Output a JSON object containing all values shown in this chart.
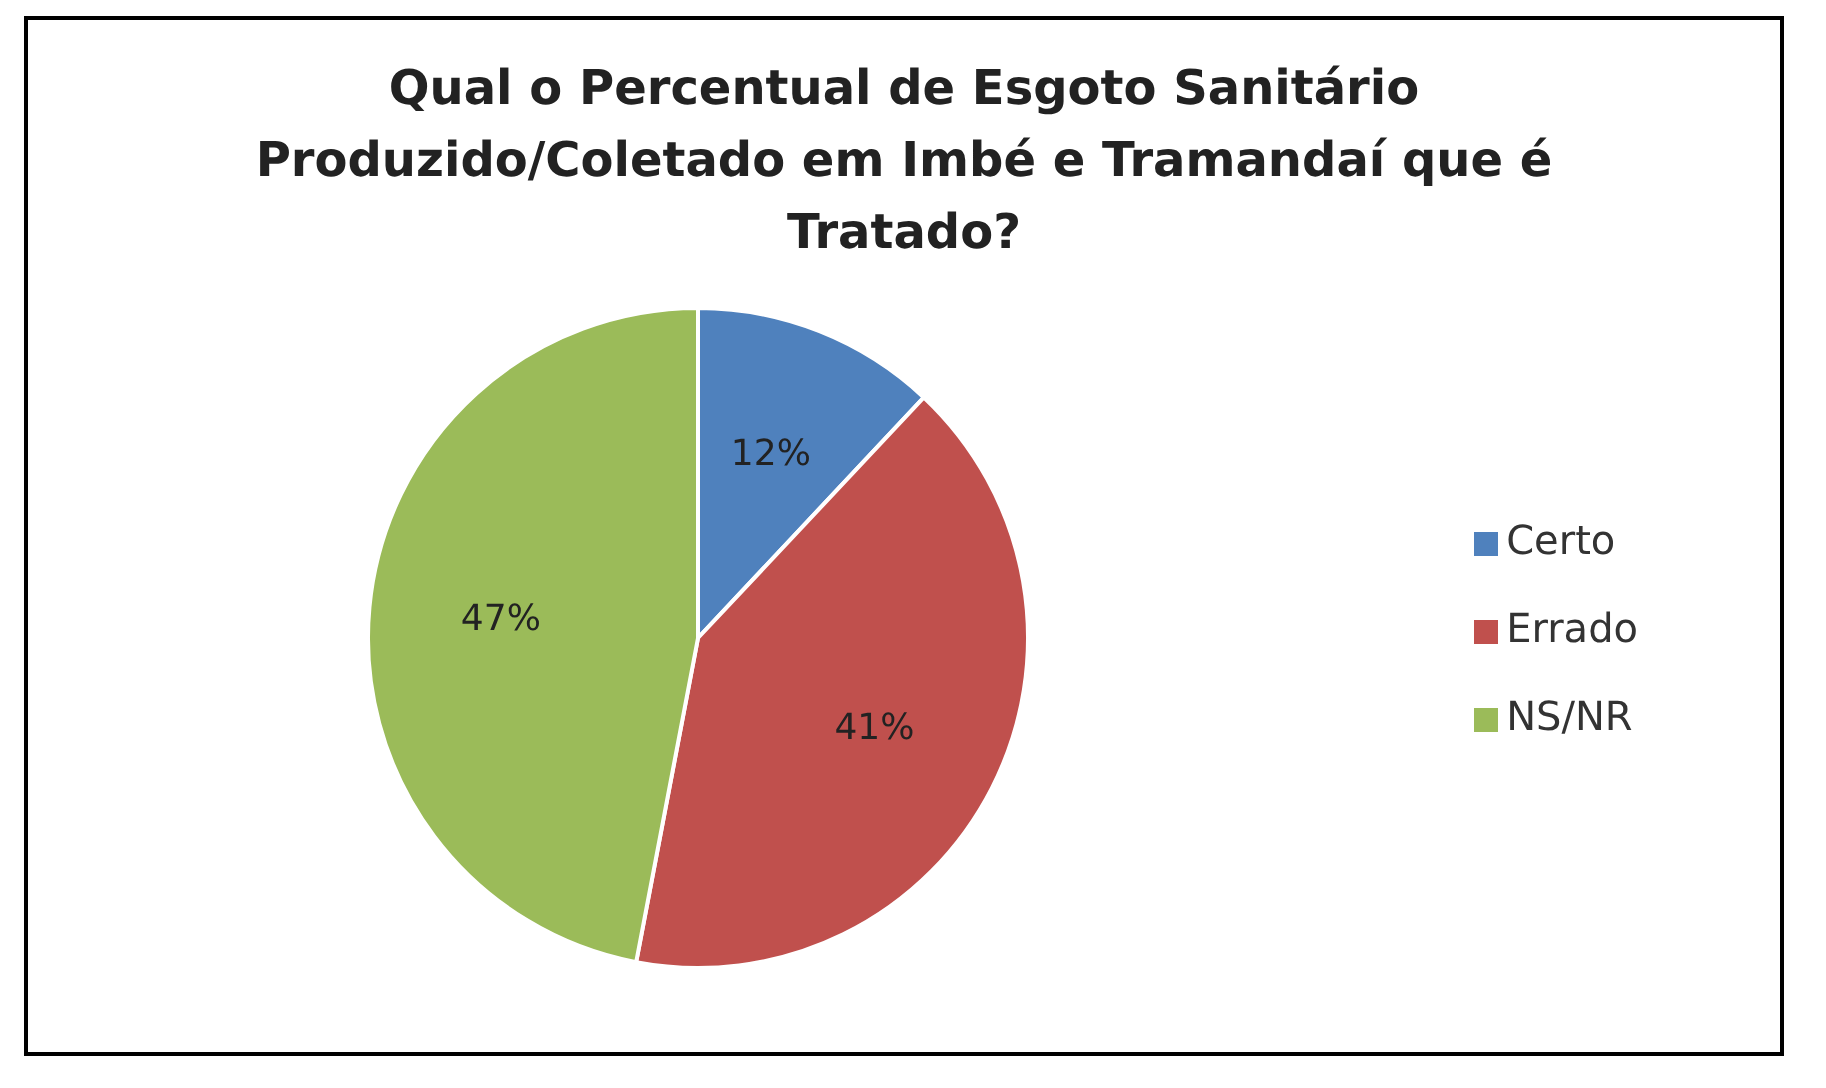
{
  "chart_data": {
    "type": "pie",
    "title": "Qual o Percentual de Esgoto Sanitário Produzido/Coletado em Imbé e Tramandaí que é Tratado?",
    "categories": [
      "Certo",
      "Errado",
      "NS/NR"
    ],
    "values": [
      12,
      41,
      47
    ],
    "colors": [
      "#4f81bd",
      "#c0504d",
      "#9bbb59"
    ],
    "value_labels": [
      "12%",
      "41%",
      "47%"
    ],
    "legend": "right"
  }
}
